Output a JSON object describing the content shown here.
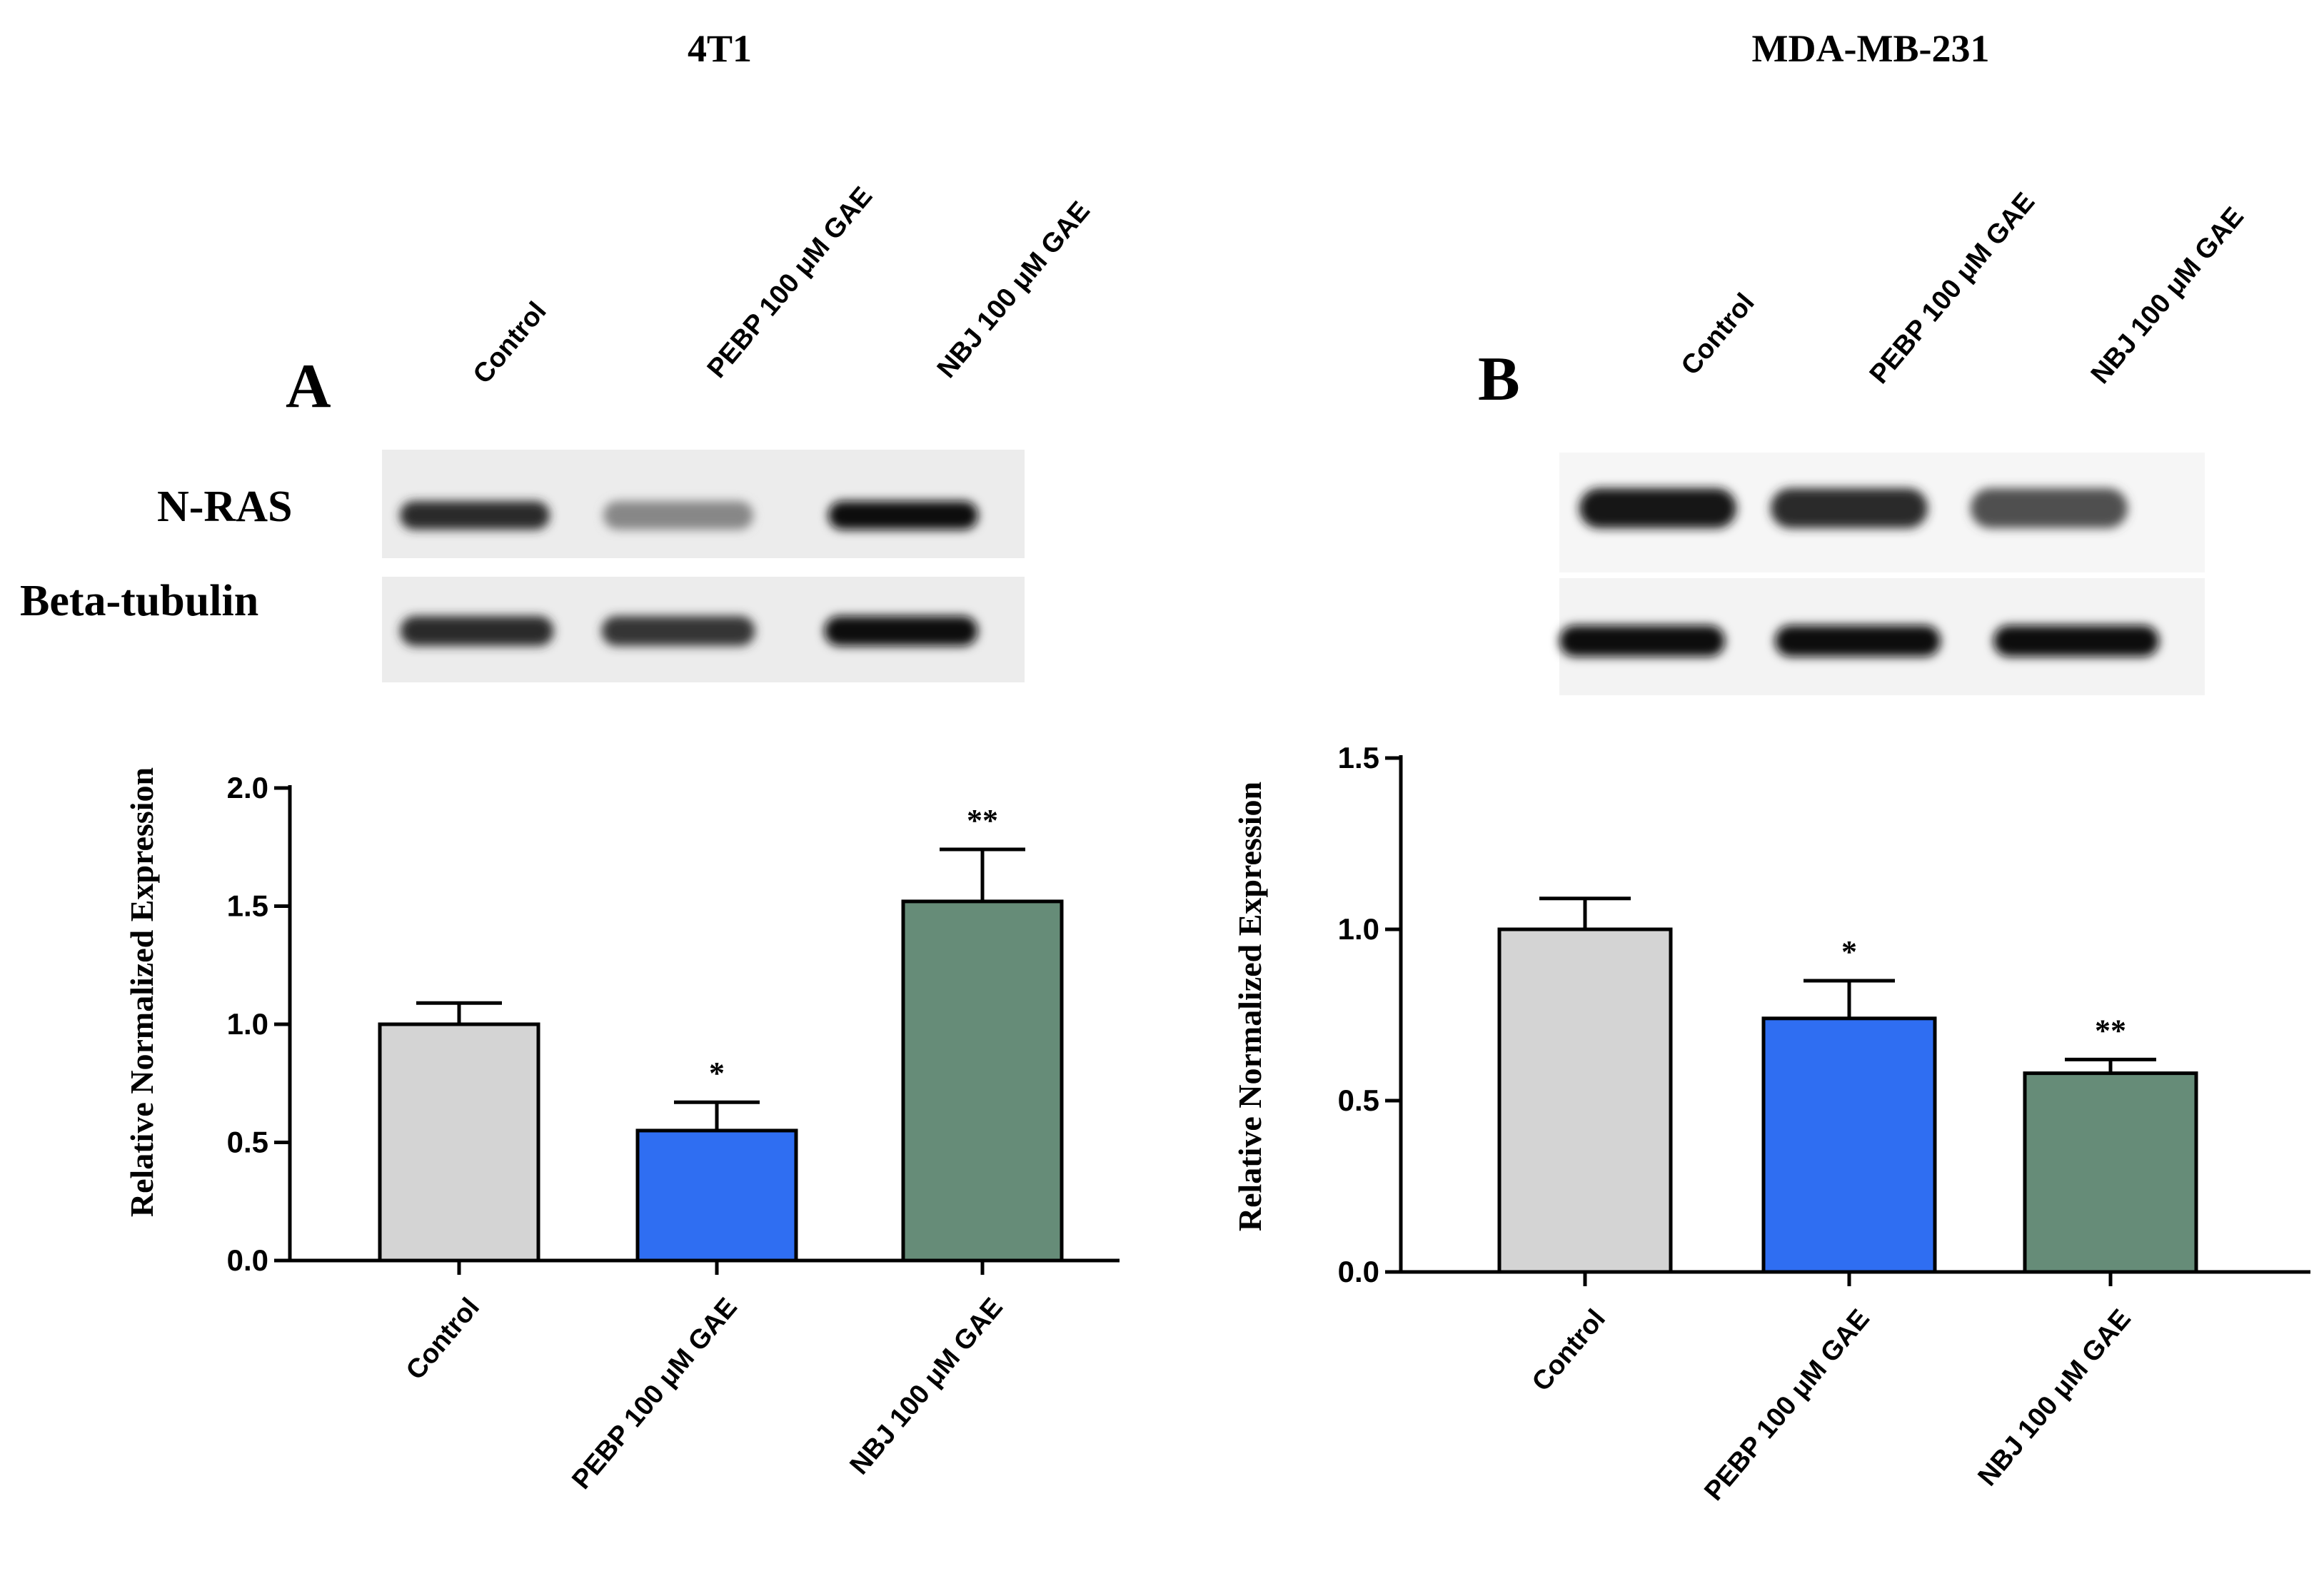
{
  "figure": {
    "panels": [
      {
        "letter": "A",
        "cell_line": "4T1",
        "lane_labels": [
          "Control",
          "PEBP 100 μM GAE",
          "NBJ 100 μM GAE"
        ],
        "blot_labels": [
          "N-RAS",
          "Beta-tubulin"
        ],
        "blot_intensity": {
          "N-RAS": [
            0.85,
            0.35,
            1.0
          ],
          "Beta-tubulin": [
            0.85,
            0.8,
            1.0
          ]
        }
      },
      {
        "letter": "B",
        "cell_line": "MDA-MB-231",
        "lane_labels": [
          "Control",
          "PEBP 100 μM GAE",
          "NBJ 100 μM GAE"
        ],
        "blot_labels": [],
        "blot_intensity": {
          "N-RAS": [
            0.95,
            0.85,
            0.65
          ],
          "Beta-tubulin": [
            1.0,
            1.0,
            1.0
          ]
        }
      }
    ]
  },
  "chart_data": [
    {
      "type": "bar",
      "title": "4T1",
      "categories": [
        "Control",
        "PEBP 100 μM GAE",
        "NBJ 100 μM GAE"
      ],
      "values": [
        1.0,
        0.55,
        1.52
      ],
      "errors": [
        0.09,
        0.12,
        0.22
      ],
      "significance": [
        "",
        "*",
        "**"
      ],
      "colors": [
        "#d4d4d4",
        "#2f6ef2",
        "#668c78"
      ],
      "ylabel": "Relative Normalized Expression",
      "ylim": [
        0,
        2.0
      ],
      "yticks": [
        "0.0",
        "0.5",
        "1.0",
        "1.5",
        "2.0"
      ],
      "ytick_values": [
        0,
        0.5,
        1.0,
        1.5,
        2.0
      ],
      "grid": false,
      "legend": "none"
    },
    {
      "type": "bar",
      "title": "MDA-MB-231",
      "categories": [
        "Control",
        "PEBP 100 μM GAE",
        "NBJ 100 μM GAE"
      ],
      "values": [
        1.0,
        0.74,
        0.58
      ],
      "errors": [
        0.09,
        0.11,
        0.04
      ],
      "significance": [
        "",
        "*",
        "**"
      ],
      "colors": [
        "#d4d4d4",
        "#2f6ef2",
        "#668c78"
      ],
      "ylabel": "Relative Normalized Expression",
      "ylim": [
        0,
        1.5
      ],
      "yticks": [
        "0.0",
        "0.5",
        "1.0",
        "1.5"
      ],
      "ytick_values": [
        0,
        0.5,
        1.0,
        1.5
      ],
      "grid": false,
      "legend": "none"
    }
  ]
}
